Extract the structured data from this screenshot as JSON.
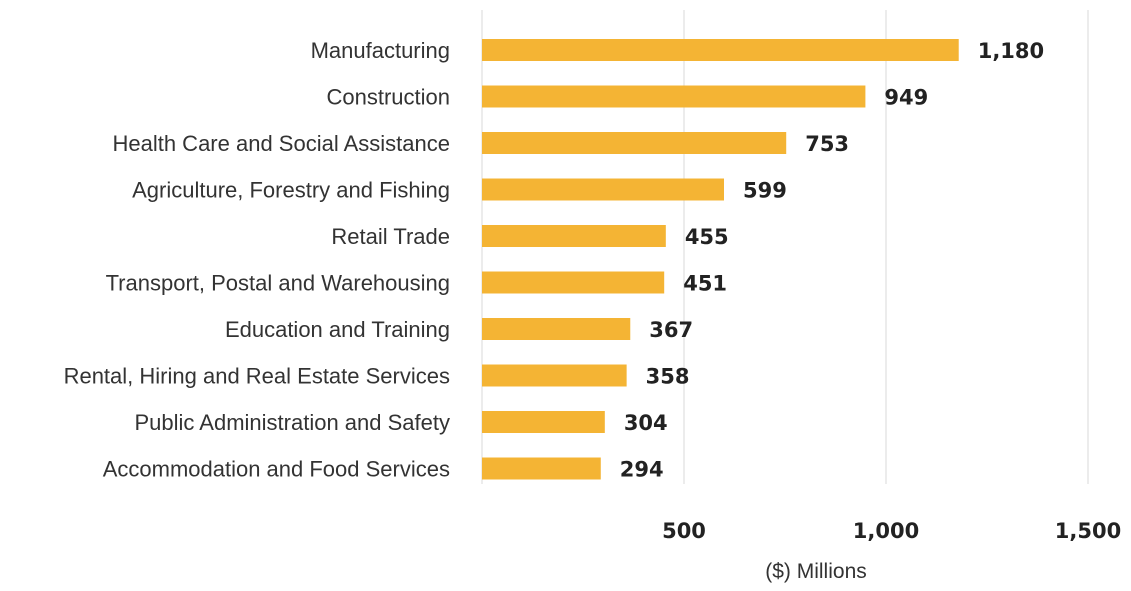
{
  "chart_data": {
    "type": "bar",
    "orientation": "horizontal",
    "categories": [
      "Manufacturing",
      "Construction",
      "Health Care and Social Assistance",
      "Agriculture, Forestry and Fishing",
      "Retail Trade",
      "Transport, Postal and Warehousing",
      "Education and Training",
      "Rental, Hiring and Real Estate Services",
      "Public Administration and Safety",
      "Accommodation and Food Services"
    ],
    "values": [
      1180,
      949,
      753,
      599,
      455,
      451,
      367,
      358,
      304,
      294
    ],
    "value_labels": [
      "1,180",
      "949",
      "753",
      "599",
      "455",
      "451",
      "367",
      "358",
      "304",
      "294"
    ],
    "xticks": [
      500,
      1000,
      1500
    ],
    "xtick_labels": [
      "500",
      "1,000",
      "1,500"
    ],
    "xlim": [
      0,
      1500
    ],
    "xlabel": "($) Millions",
    "ylabel": "",
    "title": "",
    "grid": "vertical",
    "legend": "none",
    "bar_color": "#F4B434"
  }
}
